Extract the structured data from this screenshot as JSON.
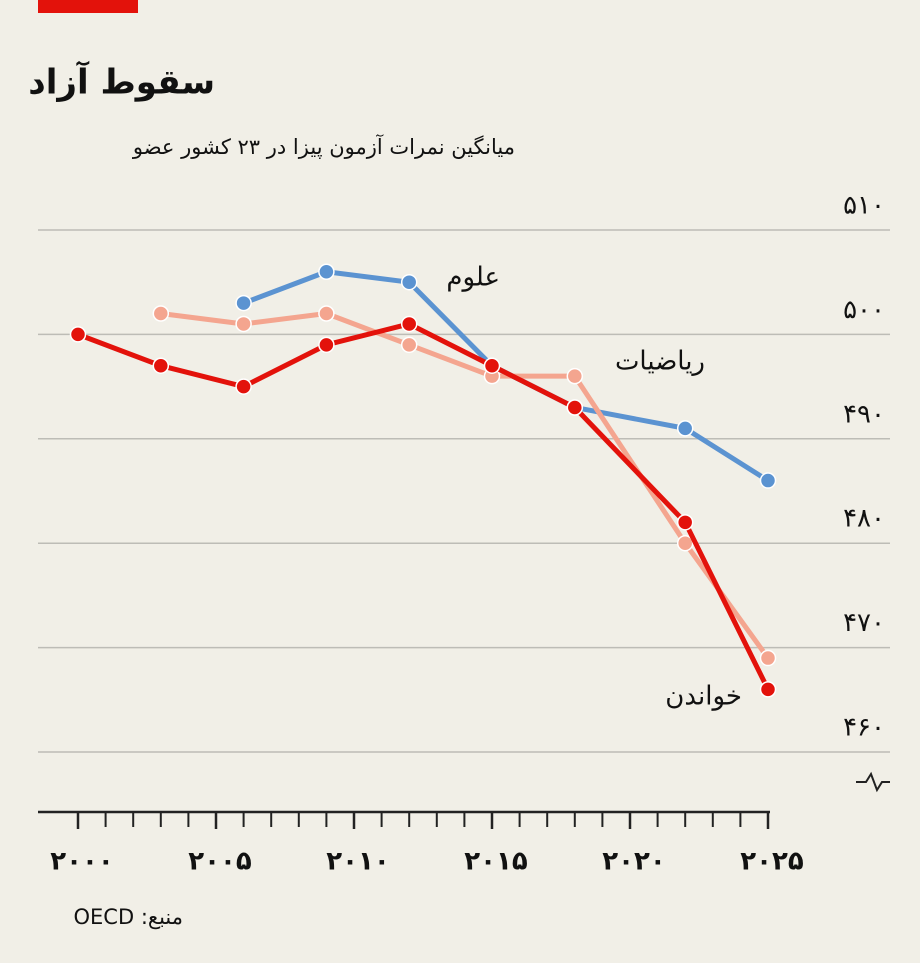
{
  "chart_data": {
    "type": "line",
    "title": "سقوط آزاد",
    "subtitle": "میانگین نمرات آزمون پیزا در ۲۳ کشور عضو",
    "source": "منبع: OECD",
    "x": [
      2000,
      2003,
      2006,
      2009,
      2012,
      2015,
      2018,
      2022,
      2025
    ],
    "series": [
      {
        "name": "علوم",
        "color": "#5b93d1",
        "values": [
          null,
          null,
          503,
          506,
          505,
          497,
          493,
          491,
          486
        ]
      },
      {
        "name": "ریاضیات",
        "color": "#f4a58f",
        "values": [
          null,
          502,
          501,
          502,
          499,
          496,
          496,
          480,
          469
        ]
      },
      {
        "name": "خواندن",
        "color": "#e3120b",
        "values": [
          500,
          497,
          495,
          499,
          501,
          497,
          493,
          482,
          466
        ]
      }
    ],
    "xlim": [
      2000,
      2025
    ],
    "xticks": [
      {
        "value": 2000,
        "label": "۲۰۰۰"
      },
      {
        "value": 2005,
        "label": "۲۰۰۵"
      },
      {
        "value": 2010,
        "label": "۲۰۱۰"
      },
      {
        "value": 2015,
        "label": "۲۰۱۵"
      },
      {
        "value": 2020,
        "label": "۲۰۲۰"
      },
      {
        "value": 2025,
        "label": "۲۰۲۵"
      }
    ],
    "ylim": [
      460,
      510
    ],
    "yticks": [
      {
        "value": 460,
        "label": "۴۶۰"
      },
      {
        "value": 470,
        "label": "۴۷۰"
      },
      {
        "value": 480,
        "label": "۴۸۰"
      },
      {
        "value": 490,
        "label": "۴۹۰"
      },
      {
        "value": 500,
        "label": "۵۰۰"
      },
      {
        "value": 510,
        "label": "۵۱۰"
      }
    ],
    "grid": true
  }
}
